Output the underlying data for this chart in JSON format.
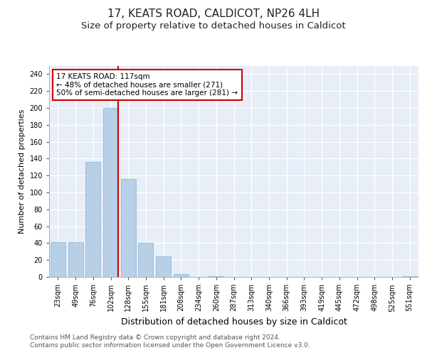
{
  "title1": "17, KEATS ROAD, CALDICOT, NP26 4LH",
  "title2": "Size of property relative to detached houses in Caldicot",
  "xlabel": "Distribution of detached houses by size in Caldicot",
  "ylabel": "Number of detached properties",
  "categories": [
    "23sqm",
    "49sqm",
    "76sqm",
    "102sqm",
    "128sqm",
    "155sqm",
    "181sqm",
    "208sqm",
    "234sqm",
    "260sqm",
    "287sqm",
    "313sqm",
    "340sqm",
    "366sqm",
    "393sqm",
    "419sqm",
    "445sqm",
    "472sqm",
    "498sqm",
    "525sqm",
    "551sqm"
  ],
  "values": [
    41,
    41,
    136,
    200,
    116,
    40,
    24,
    3,
    0,
    1,
    0,
    0,
    0,
    0,
    0,
    0,
    0,
    0,
    0,
    0,
    1
  ],
  "bar_color": "#b8cfe8",
  "bar_edge_color": "#8ab0d0",
  "vline_x_index": 3.42,
  "vline_color": "#cc0000",
  "annotation_box_text": "17 KEATS ROAD: 117sqm\n← 48% of detached houses are smaller (271)\n50% of semi-detached houses are larger (281) →",
  "annotation_box_color": "#cc0000",
  "annotation_box_fill": "#ffffff",
  "ylim": [
    0,
    250
  ],
  "yticks": [
    0,
    20,
    40,
    60,
    80,
    100,
    120,
    140,
    160,
    180,
    200,
    220,
    240
  ],
  "bg_color": "#e8eef8",
  "footer1": "Contains HM Land Registry data © Crown copyright and database right 2024.",
  "footer2": "Contains public sector information licensed under the Open Government Licence v3.0.",
  "title1_fontsize": 11,
  "title2_fontsize": 9.5,
  "xlabel_fontsize": 9,
  "ylabel_fontsize": 8,
  "tick_fontsize": 7,
  "footer_fontsize": 6.5,
  "ann_fontsize": 7.5
}
